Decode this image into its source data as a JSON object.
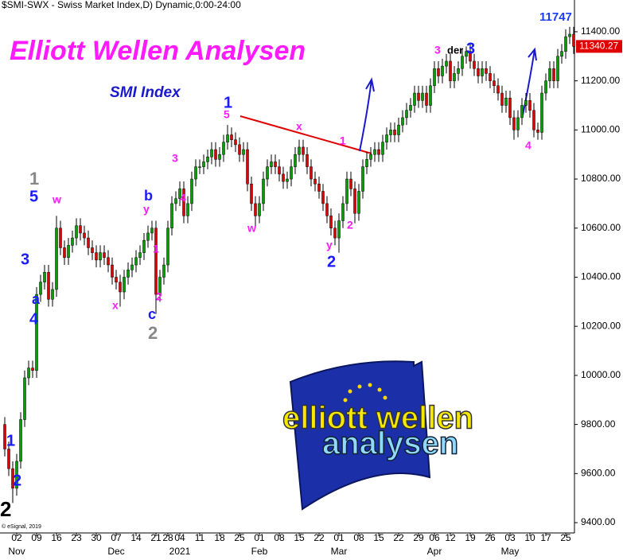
{
  "chart_data": {
    "type": "candlestick",
    "header": "$SMI-SWX - Swiss Market Index,D) Dynamic,0:00-24:00",
    "title": "Elliott Wellen Analysen",
    "subtitle": "SMI Index",
    "copyright": "© eSignal, 2019",
    "logo": [
      "elliott wellen",
      "analysen"
    ],
    "up_color": "#00a000",
    "down_color": "#e00000",
    "categories": [
      null,
      null,
      null,
      "02",
      null,
      null,
      null,
      null,
      "09",
      null,
      null,
      null,
      null,
      "16",
      null,
      null,
      null,
      null,
      "23",
      null,
      null,
      null,
      null,
      "30",
      null,
      null,
      null,
      null,
      "07",
      null,
      null,
      null,
      null,
      "14",
      null,
      null,
      null,
      null,
      "21",
      null,
      null,
      "28",
      null,
      null,
      "04",
      null,
      null,
      null,
      null,
      "11",
      null,
      null,
      null,
      null,
      "18",
      null,
      null,
      null,
      null,
      "25",
      null,
      null,
      null,
      null,
      "01",
      null,
      null,
      null,
      null,
      "08",
      null,
      null,
      null,
      null,
      "15",
      null,
      null,
      null,
      null,
      "22",
      null,
      null,
      null,
      null,
      "01",
      null,
      null,
      null,
      null,
      "08",
      null,
      null,
      null,
      null,
      "15",
      null,
      null,
      null,
      null,
      "22",
      null,
      null,
      null,
      null,
      "29",
      null,
      null,
      null,
      "06",
      null,
      null,
      null,
      "12",
      null,
      null,
      null,
      null,
      "19",
      null,
      null,
      null,
      null,
      "26",
      null,
      null,
      null,
      null,
      "03",
      null,
      null,
      null,
      null,
      "10",
      null,
      null,
      null,
      "17",
      null,
      null,
      null,
      null,
      "25",
      null,
      null
    ],
    "months": [
      null,
      null,
      null,
      "Nov",
      null,
      null,
      null,
      null,
      null,
      null,
      null,
      null,
      null,
      null,
      null,
      null,
      null,
      null,
      null,
      null,
      null,
      null,
      null,
      null,
      null,
      null,
      null,
      null,
      "Dec",
      null,
      null,
      null,
      null,
      null,
      null,
      null,
      null,
      null,
      null,
      null,
      null,
      null,
      null,
      null,
      "2021",
      null,
      null,
      null,
      null,
      null,
      null,
      null,
      null,
      null,
      null,
      null,
      null,
      null,
      null,
      null,
      null,
      null,
      null,
      null,
      "Feb",
      null,
      null,
      null,
      null,
      null,
      null,
      null,
      null,
      null,
      null,
      null,
      null,
      null,
      null,
      null,
      null,
      null,
      null,
      null,
      "Mar",
      null,
      null,
      null,
      null,
      null,
      null,
      null,
      null,
      null,
      null,
      null,
      null,
      null,
      null,
      null,
      null,
      null,
      null,
      null,
      null,
      null,
      null,
      null,
      "Apr",
      null,
      null,
      null,
      null,
      null,
      null,
      null,
      null,
      null,
      null,
      null,
      null,
      null,
      null,
      null,
      null,
      null,
      null,
      "May",
      null,
      null,
      null,
      null,
      null,
      null,
      null,
      null,
      null,
      null,
      null,
      null,
      null,
      null,
      null,
      null
    ],
    "open": [
      9800,
      9700,
      9620,
      9540,
      9650,
      9820,
      9990,
      10030,
      10020,
      10330,
      10380,
      10420,
      10310,
      10350,
      10600,
      10520,
      10480,
      10530,
      10560,
      10610,
      10580,
      10560,
      10520,
      10500,
      10470,
      10500,
      10480,
      10450,
      10400,
      10380,
      10340,
      10400,
      10430,
      10450,
      10480,
      10500,
      10550,
      10580,
      10600,
      10330,
      10400,
      10450,
      10600,
      10700,
      10720,
      10760,
      10650,
      10700,
      10800,
      10850,
      10850,
      10870,
      10890,
      10920,
      10880,
      10900,
      10950,
      10980,
      10960,
      10940,
      10900,
      10920,
      10780,
      10700,
      10650,
      10700,
      10800,
      10850,
      10870,
      10850,
      10820,
      10790,
      10800,
      10850,
      10900,
      10930,
      10900,
      10850,
      10800,
      10780,
      10750,
      10700,
      10650,
      10600,
      10560,
      10630,
      10700,
      10800,
      10760,
      10660,
      10750,
      10850,
      10880,
      10900,
      10920,
      10900,
      10950,
      10980,
      11000,
      10980,
      11020,
      11050,
      11080,
      11100,
      11150,
      11120,
      11150,
      11100,
      11180,
      11250,
      11220,
      11260,
      11280,
      11200,
      11230,
      11250,
      11300,
      11320,
      11280,
      11250,
      11220,
      11250,
      11230,
      11200,
      11180,
      11150,
      11100,
      11130,
      11050,
      11000,
      11050,
      11100,
      11120,
      11080,
      11000,
      10990,
      11150,
      11200,
      11250,
      11200,
      11300,
      11320,
      11380,
      11390
    ],
    "high": [
      9830,
      9730,
      9650,
      9680,
      9850,
      10020,
      10060,
      10060,
      10360,
      10410,
      10450,
      10450,
      10380,
      10650,
      10630,
      10550,
      10560,
      10590,
      10640,
      10640,
      10610,
      10590,
      10550,
      10530,
      10530,
      10530,
      10510,
      10480,
      10430,
      10410,
      10430,
      10460,
      10480,
      10510,
      10530,
      10580,
      10610,
      10630,
      10630,
      10430,
      10480,
      10630,
      10730,
      10750,
      10790,
      10790,
      10730,
      10830,
      10880,
      10880,
      10900,
      10920,
      10950,
      10950,
      10930,
      10980,
      11020,
      11010,
      10990,
      10970,
      10950,
      10950,
      10810,
      10730,
      10730,
      10830,
      10880,
      10900,
      10900,
      10880,
      10850,
      10830,
      10880,
      10930,
      10960,
      10960,
      10930,
      10880,
      10830,
      10810,
      10780,
      10730,
      10680,
      10630,
      10660,
      10730,
      10830,
      10830,
      10790,
      10780,
      10880,
      10910,
      10930,
      10950,
      10950,
      10980,
      11010,
      11030,
      11030,
      11050,
      11080,
      11110,
      11130,
      11180,
      11180,
      11180,
      11180,
      11210,
      11280,
      11280,
      11290,
      11310,
      11310,
      11260,
      11280,
      11330,
      11340,
      11350,
      11310,
      11280,
      11280,
      11280,
      11260,
      11230,
      11210,
      11180,
      11160,
      11160,
      11080,
      11080,
      11130,
      11150,
      11150,
      11110,
      11030,
      11180,
      11230,
      11280,
      11280,
      11330,
      11350,
      11410,
      11420,
      11420
    ],
    "low": [
      9670,
      9590,
      9480,
      9510,
      9620,
      9790,
      9960,
      9990,
      9990,
      10300,
      10350,
      10280,
      10280,
      10320,
      10490,
      10450,
      10450,
      10500,
      10530,
      10550,
      10530,
      10490,
      10470,
      10440,
      10440,
      10450,
      10420,
      10370,
      10350,
      10280,
      10310,
      10370,
      10400,
      10420,
      10450,
      10470,
      10520,
      10550,
      10250,
      10300,
      10370,
      10420,
      10570,
      10670,
      10690,
      10620,
      10620,
      10670,
      10770,
      10820,
      10820,
      10840,
      10860,
      10850,
      10850,
      10870,
      10920,
      10930,
      10910,
      10870,
      10870,
      10750,
      10670,
      10600,
      10620,
      10670,
      10770,
      10820,
      10820,
      10790,
      10760,
      10760,
      10770,
      10820,
      10870,
      10870,
      10820,
      10770,
      10750,
      10720,
      10670,
      10620,
      10570,
      10530,
      10500,
      10600,
      10670,
      10730,
      10620,
      10630,
      10720,
      10820,
      10850,
      10870,
      10870,
      10870,
      10920,
      10950,
      10950,
      10950,
      10990,
      11020,
      11050,
      11070,
      11090,
      11090,
      11070,
      11070,
      11150,
      11190,
      11190,
      11230,
      11170,
      11170,
      11200,
      11220,
      11270,
      11250,
      11220,
      11190,
      11190,
      11200,
      11170,
      11150,
      11120,
      11070,
      11070,
      11020,
      10960,
      10970,
      11020,
      11070,
      11050,
      10970,
      10960,
      10960,
      11120,
      11170,
      11170,
      11170,
      11270,
      11290,
      11350,
      11310
    ],
    "close": [
      9700,
      9620,
      9540,
      9650,
      9820,
      9990,
      10030,
      10020,
      10330,
      10380,
      10420,
      10310,
      10350,
      10600,
      10520,
      10480,
      10530,
      10560,
      10610,
      10580,
      10560,
      10520,
      10500,
      10470,
      10500,
      10480,
      10450,
      10400,
      10380,
      10340,
      10400,
      10430,
      10450,
      10480,
      10500,
      10550,
      10580,
      10600,
      10330,
      10400,
      10450,
      10600,
      10700,
      10720,
      10760,
      10650,
      10700,
      10800,
      10850,
      10850,
      10870,
      10890,
      10920,
      10880,
      10900,
      10950,
      10980,
      10960,
      10940,
      10900,
      10920,
      10780,
      10700,
      10650,
      10700,
      10800,
      10850,
      10870,
      10850,
      10820,
      10790,
      10800,
      10850,
      10900,
      10930,
      10900,
      10850,
      10800,
      10780,
      10750,
      10700,
      10650,
      10600,
      10560,
      10630,
      10700,
      10800,
      10760,
      10660,
      10750,
      10850,
      10880,
      10900,
      10920,
      10900,
      10950,
      10980,
      11000,
      10980,
      11020,
      11050,
      11080,
      11100,
      11150,
      11120,
      11150,
      11100,
      11180,
      11250,
      11220,
      11260,
      11280,
      11200,
      11230,
      11250,
      11300,
      11320,
      11280,
      11250,
      11220,
      11250,
      11230,
      11200,
      11180,
      11150,
      11100,
      11130,
      11050,
      11000,
      11050,
      11100,
      11120,
      11080,
      11000,
      10990,
      11150,
      11200,
      11250,
      11200,
      11300,
      11320,
      11380,
      11390,
      11340.27
    ],
    "ylim": [
      9358,
      11484
    ],
    "yticks": [
      {
        "value": 9400,
        "label": "9400.00"
      },
      {
        "value": 9600,
        "label": "9600.00"
      },
      {
        "value": 9800,
        "label": "9800.00"
      },
      {
        "value": 10000,
        "label": "10000.00"
      },
      {
        "value": 10200,
        "label": "10200.00"
      },
      {
        "value": 10400,
        "label": "10400.00"
      },
      {
        "value": 10600,
        "label": "10600.00"
      },
      {
        "value": 10800,
        "label": "10800.00"
      },
      {
        "value": 11000,
        "label": "11000.00"
      },
      {
        "value": 11200,
        "label": "11200.00"
      },
      {
        "value": 11400,
        "label": "11400.00"
      }
    ],
    "grid": false,
    "annotations": [
      {
        "text": "11747",
        "color": "#1a3cff"
      },
      {
        "text": "2",
        "color": "#000000"
      },
      {
        "text": "1",
        "color": "#1a1aff"
      },
      {
        "text": "2",
        "color": "#1a1aff"
      },
      {
        "text": "3",
        "color": "#1a1aff"
      },
      {
        "text": "a",
        "color": "#1a1aff"
      },
      {
        "text": "4",
        "color": "#1a1aff"
      },
      {
        "text": "5",
        "color": "#1a1aff"
      },
      {
        "text": "1",
        "color": "#888888"
      },
      {
        "text": "w",
        "color": "#ff1aff"
      },
      {
        "text": "x",
        "color": "#ff1aff"
      },
      {
        "text": "b",
        "color": "#1a1aff"
      },
      {
        "text": "y",
        "color": "#ff1aff"
      },
      {
        "text": "1",
        "color": "#ff1aff"
      },
      {
        "text": "2",
        "color": "#ff1aff"
      },
      {
        "text": "c",
        "color": "#1a1aff"
      },
      {
        "text": "2",
        "color": "#888888"
      },
      {
        "text": "3",
        "color": "#ff1aff"
      },
      {
        "text": "4",
        "color": "#ff1aff"
      },
      {
        "text": "1",
        "color": "#1a1aff"
      },
      {
        "text": "5",
        "color": "#ff1aff"
      },
      {
        "text": "w",
        "color": "#ff1aff"
      },
      {
        "text": "x",
        "color": "#ff1aff"
      },
      {
        "text": "1",
        "color": "#ff1aff"
      },
      {
        "text": "y",
        "color": "#ff1aff"
      },
      {
        "text": "2",
        "color": "#1a1aff"
      },
      {
        "text": "2",
        "color": "#ff1aff"
      },
      {
        "text": "3",
        "color": "#ff1aff"
      },
      {
        "text": "der",
        "color": "#000000"
      },
      {
        "text": "3",
        "color": "#1a1aff"
      },
      {
        "text": "4",
        "color": "#ff1aff"
      }
    ]
  }
}
